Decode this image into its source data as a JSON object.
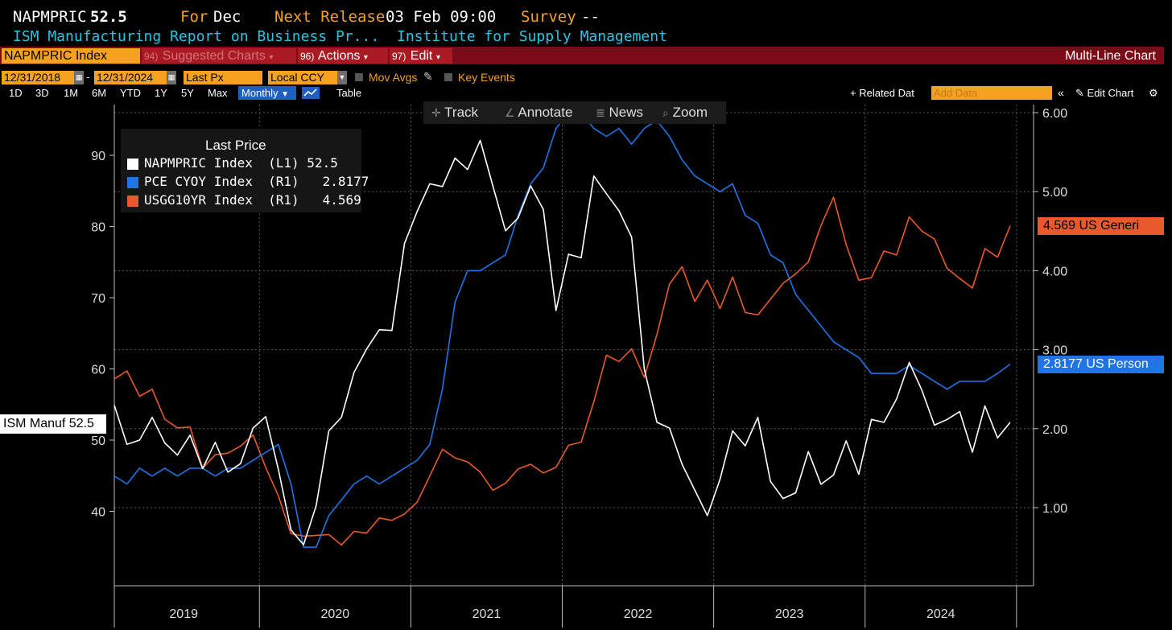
{
  "header": {
    "ticker": "NAPMPRIC",
    "last_value": "52.5",
    "for_label": "For",
    "for_value": "Dec",
    "next_release_label": "Next Release",
    "next_release_value": "03 Feb 09:00",
    "survey_label": "Survey",
    "survey_value": "--",
    "report_name": "ISM Manufacturing Report on Business Pr...",
    "source": "Institute for Supply Management"
  },
  "menu": {
    "security": "NAPMPRIC Index",
    "suggested_num": "94)",
    "suggested": "Suggested Charts",
    "actions_num": "96)",
    "actions": "Actions",
    "edit_num": "97)",
    "edit": "Edit",
    "chart_type": "Multi-Line Chart"
  },
  "controls": {
    "start_date": "12/31/2018",
    "end_date": "12/31/2024",
    "field": "Last Px",
    "currency": "Local CCY",
    "mov_avgs": "Mov Avgs",
    "key_events": "Key Events",
    "ranges": [
      "1D",
      "3D",
      "1M",
      "6M",
      "YTD",
      "1Y",
      "5Y",
      "Max"
    ],
    "frequency": "Monthly",
    "table": "Table",
    "related_data": "+ Related Dat",
    "add_data_placeholder": "Add Data",
    "edit_chart": "Edit Chart"
  },
  "chart_tools": [
    "Track",
    "Annotate",
    "News",
    "Zoom"
  ],
  "legend": {
    "title": "Last Price",
    "items": [
      {
        "name": "NAPMPRIC Index",
        "axis": "(L1)",
        "value": "52.5",
        "color": "#ffffff"
      },
      {
        "name": "PCE CYOY Index",
        "axis": "(R1)",
        "value": "2.8177",
        "color": "#1f74e6"
      },
      {
        "name": "USGG10YR Index",
        "axis": "(R1)",
        "value": "4.569",
        "color": "#e8592c"
      }
    ]
  },
  "tags": {
    "left": "ISM Manuf 52.5",
    "usgg": "4.569  US Generi",
    "pce": "2.8177 US Person"
  },
  "chart_data": {
    "type": "line",
    "x": [
      "2019-01",
      "2019-02",
      "2019-03",
      "2019-04",
      "2019-05",
      "2019-06",
      "2019-07",
      "2019-08",
      "2019-09",
      "2019-10",
      "2019-11",
      "2019-12",
      "2020-01",
      "2020-02",
      "2020-03",
      "2020-04",
      "2020-05",
      "2020-06",
      "2020-07",
      "2020-08",
      "2020-09",
      "2020-10",
      "2020-11",
      "2020-12",
      "2021-01",
      "2021-02",
      "2021-03",
      "2021-04",
      "2021-05",
      "2021-06",
      "2021-07",
      "2021-08",
      "2021-09",
      "2021-10",
      "2021-11",
      "2021-12",
      "2022-01",
      "2022-02",
      "2022-03",
      "2022-04",
      "2022-05",
      "2022-06",
      "2022-07",
      "2022-08",
      "2022-09",
      "2022-10",
      "2022-11",
      "2022-12",
      "2023-01",
      "2023-02",
      "2023-03",
      "2023-04",
      "2023-05",
      "2023-06",
      "2023-07",
      "2023-08",
      "2023-09",
      "2023-10",
      "2023-11",
      "2023-12",
      "2024-01",
      "2024-02",
      "2024-03",
      "2024-04",
      "2024-05",
      "2024-06",
      "2024-07",
      "2024-08",
      "2024-09",
      "2024-10",
      "2024-11",
      "2024-12"
    ],
    "x_tick_labels": [
      "2019",
      "2020",
      "2021",
      "2022",
      "2023",
      "2024"
    ],
    "y_left": {
      "ticks": [
        40,
        50,
        60,
        70,
        80,
        90
      ],
      "range": [
        29,
        98
      ]
    },
    "y_right": {
      "ticks": [
        "1.00",
        "2.00",
        "3.00",
        "4.00",
        "5.00",
        "6.00"
      ],
      "range": [
        0.0,
        6.0
      ]
    },
    "series": [
      {
        "name": "NAPMPRIC Index",
        "axis": "left",
        "values": [
          54.9,
          49.4,
          50.0,
          53.2,
          49.6,
          47.9,
          50.7,
          46.0,
          49.7,
          45.5,
          46.7,
          51.7,
          53.3,
          45.9,
          37.4,
          35.3,
          40.8,
          51.3,
          53.2,
          59.5,
          62.8,
          65.5,
          65.4,
          77.6,
          82.1,
          86.0,
          85.6,
          89.6,
          88.0,
          92.1,
          85.7,
          79.4,
          81.2,
          85.7,
          82.4,
          68.2,
          76.1,
          75.6,
          87.1,
          84.6,
          82.2,
          78.5,
          60.0,
          52.5,
          51.7,
          46.6,
          43.0,
          39.4,
          44.5,
          51.3,
          49.2,
          53.2,
          44.2,
          41.8,
          42.6,
          48.4,
          43.8,
          45.1,
          49.9,
          45.2,
          52.9,
          52.5,
          55.8,
          60.9,
          57.0,
          52.1,
          52.9,
          54.0,
          48.3,
          54.8,
          50.3,
          52.5
        ]
      },
      {
        "name": "PCE CYOY Index",
        "axis": "right",
        "values": [
          1.4,
          1.3,
          1.5,
          1.4,
          1.5,
          1.4,
          1.5,
          1.5,
          1.4,
          1.5,
          1.5,
          1.6,
          1.7,
          1.8,
          1.3,
          0.5,
          0.5,
          0.9,
          1.1,
          1.3,
          1.4,
          1.3,
          1.4,
          1.5,
          1.6,
          1.8,
          2.5,
          3.6,
          4.0,
          4.0,
          4.1,
          4.2,
          4.7,
          5.1,
          5.3,
          5.8,
          6.0,
          6.0,
          5.8,
          5.7,
          5.8,
          5.6,
          5.8,
          5.9,
          5.7,
          5.4,
          5.2,
          5.1,
          5.0,
          5.1,
          4.7,
          4.6,
          4.2,
          4.1,
          3.7,
          3.5,
          3.3,
          3.1,
          3.0,
          2.9,
          2.7,
          2.7,
          2.7,
          2.8,
          2.7,
          2.6,
          2.5,
          2.6,
          2.6,
          2.6,
          2.7,
          2.8177
        ]
      },
      {
        "name": "USGG10YR Index",
        "axis": "right",
        "values": [
          2.63,
          2.73,
          2.41,
          2.5,
          2.12,
          2.01,
          2.02,
          1.5,
          1.67,
          1.69,
          1.78,
          1.92,
          1.51,
          1.15,
          0.67,
          0.64,
          0.65,
          0.66,
          0.53,
          0.7,
          0.68,
          0.87,
          0.84,
          0.92,
          1.07,
          1.4,
          1.74,
          1.63,
          1.58,
          1.45,
          1.22,
          1.31,
          1.49,
          1.55,
          1.44,
          1.51,
          1.79,
          1.83,
          2.34,
          2.93,
          2.85,
          3.01,
          2.65,
          3.19,
          3.83,
          4.05,
          3.61,
          3.88,
          3.52,
          3.92,
          3.47,
          3.44,
          3.64,
          3.84,
          3.96,
          4.11,
          4.57,
          4.93,
          4.33,
          3.88,
          3.91,
          4.25,
          4.2,
          4.68,
          4.5,
          4.4,
          4.03,
          3.9,
          3.78,
          4.28,
          4.17,
          4.569
        ]
      }
    ],
    "grid": true,
    "legend_placement": "top-left"
  }
}
